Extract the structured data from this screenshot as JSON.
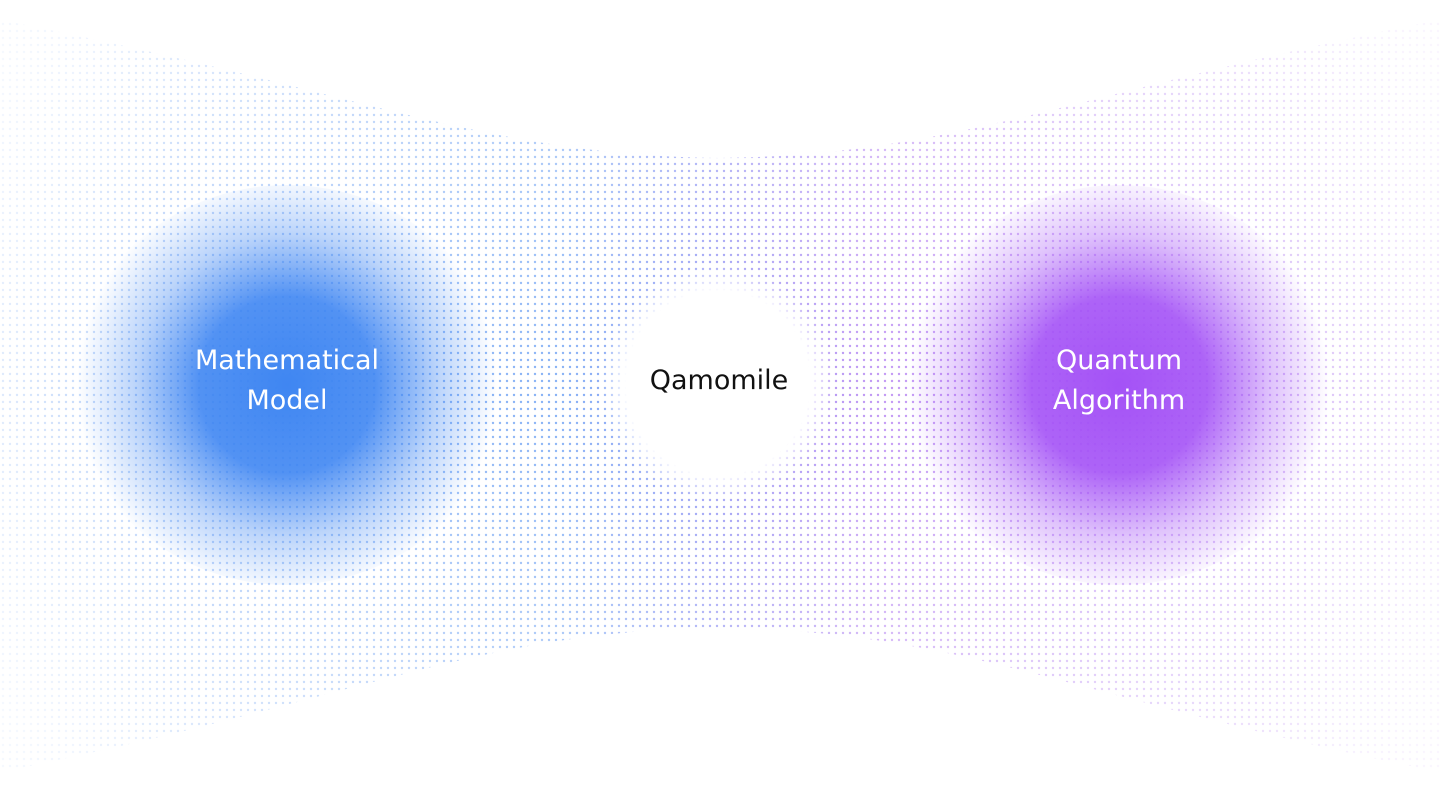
{
  "colors": {
    "background": "#ffffff",
    "blue": "#3f86f2",
    "purple": "#a452f6",
    "dot_blue": "#4a8af0",
    "dot_purple": "#a466ef",
    "label_light": "#ffffff",
    "label_dark": "#111111"
  },
  "nodes": {
    "left": {
      "line1": "Mathematical",
      "line2": "Model"
    },
    "center": {
      "label": "Qamomile"
    },
    "right": {
      "line1": "Quantum",
      "line2": "Algorithm"
    }
  }
}
